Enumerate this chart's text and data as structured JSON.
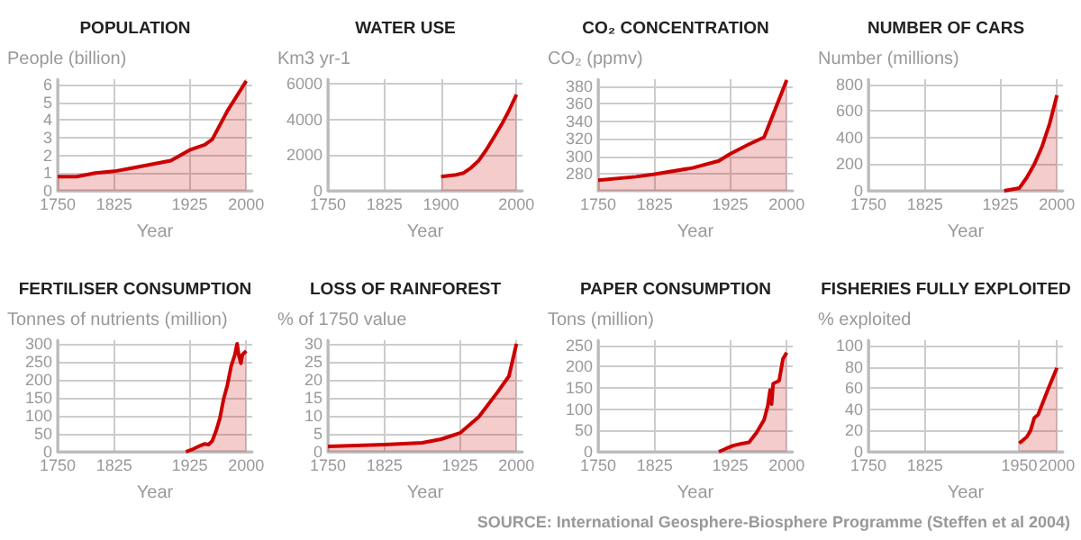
{
  "chart_data": [
    {
      "type": "area",
      "title": "POPULATION",
      "ylabel": "People (billion)",
      "xlabel": "Year",
      "color": "#cc0000",
      "grid": true,
      "marker": "none",
      "line_style": "solid",
      "x": [
        1750,
        1775,
        1800,
        1825,
        1850,
        1875,
        1900,
        1925,
        1945,
        1955,
        1975,
        2000
      ],
      "values": [
        0.8,
        0.8,
        1.0,
        1.1,
        1.3,
        1.5,
        1.7,
        2.3,
        2.6,
        2.9,
        4.5,
        6.2
      ],
      "xlim": [
        1750,
        2008
      ],
      "xticks": [
        1750,
        1825,
        1925,
        2000
      ],
      "ylim": [
        0,
        6.3
      ],
      "yticks": [
        0,
        1,
        2,
        3,
        4,
        5,
        6
      ]
    },
    {
      "type": "area",
      "title": "WATER USE",
      "ylabel": "Km3 yr-1",
      "xlabel": "Year",
      "color": "#cc0000",
      "grid": true,
      "marker": "none",
      "line_style": "solid",
      "x": [
        1900,
        1920,
        1930,
        1940,
        1950,
        1960,
        1970,
        1980,
        1990,
        2000
      ],
      "values": [
        800,
        900,
        1000,
        1300,
        1700,
        2300,
        3000,
        3700,
        4500,
        5400
      ],
      "xlim": [
        1750,
        2008
      ],
      "xticks": [
        1750,
        1825,
        1900,
        2000
      ],
      "ylim": [
        0,
        6270
      ],
      "yticks": [
        0,
        2000,
        4000,
        6000
      ]
    },
    {
      "type": "area",
      "title": "CO₂ CONCENTRATION",
      "ylabel": "CO₂ (ppmv)",
      "xlabel": "Year",
      "color": "#cc0000",
      "grid": true,
      "marker": "none",
      "line_style": "solid",
      "x": [
        1750,
        1800,
        1825,
        1875,
        1910,
        1925,
        1950,
        1970,
        2000
      ],
      "values": [
        273,
        277,
        280,
        287,
        295,
        303,
        314,
        322,
        387
      ],
      "xlim": [
        1750,
        2008
      ],
      "xticks": [
        1750,
        1825,
        1925,
        2000
      ],
      "ylim": [
        261,
        388
      ],
      "yticks": [
        280,
        300,
        320,
        340,
        360,
        380
      ]
    },
    {
      "type": "area",
      "title": "NUMBER OF CARS",
      "ylabel": "Number (millions)",
      "xlabel": "Year",
      "color": "#cc0000",
      "grid": true,
      "marker": "none",
      "line_style": "solid",
      "x": [
        1930,
        1950,
        1960,
        1970,
        1980,
        1990,
        2000
      ],
      "values": [
        0,
        20,
        100,
        200,
        330,
        500,
        720
      ],
      "xlim": [
        1750,
        2008
      ],
      "xticks": [
        1750,
        1825,
        1925,
        2000
      ],
      "ylim": [
        0,
        840
      ],
      "yticks": [
        0,
        200,
        400,
        600,
        800
      ]
    },
    {
      "type": "area",
      "title": "FERTILISER CONSUMPTION",
      "ylabel": "Tonnes of nutrients (million)",
      "xlabel": "Year",
      "color": "#cc0000",
      "grid": true,
      "marker": "none",
      "line_style": "solid",
      "x": [
        1920,
        1930,
        1940,
        1945,
        1950,
        1955,
        1960,
        1965,
        1970,
        1975,
        1980,
        1985,
        1988,
        1990,
        1993,
        1995,
        2000
      ],
      "values": [
        0,
        8,
        18,
        22,
        20,
        30,
        58,
        92,
        146,
        185,
        238,
        270,
        300,
        270,
        246,
        270,
        280
      ],
      "xlim": [
        1750,
        2008
      ],
      "xticks": [
        1750,
        1825,
        1925,
        2000
      ],
      "ylim": [
        0,
        310
      ],
      "yticks": [
        0,
        50,
        100,
        150,
        200,
        250,
        300
      ]
    },
    {
      "type": "area",
      "title": "LOSS OF RAINFOREST",
      "ylabel": "% of 1750 value",
      "xlabel": "Year",
      "color": "#cc0000",
      "grid": true,
      "marker": "none",
      "line_style": "solid",
      "x": [
        1750,
        1825,
        1875,
        1900,
        1925,
        1950,
        1975,
        1990,
        2000
      ],
      "values": [
        1.5,
        2,
        2.5,
        3.5,
        5.2,
        9.7,
        16.6,
        21,
        30
      ],
      "xlim": [
        1750,
        2008
      ],
      "xticks": [
        1750,
        1825,
        1925,
        2000
      ],
      "ylim": [
        0,
        31
      ],
      "yticks": [
        0,
        5,
        10,
        15,
        20,
        25,
        30
      ]
    },
    {
      "type": "area",
      "title": "PAPER CONSUMPTION",
      "ylabel": "Tons (million)",
      "xlabel": "Year",
      "color": "#cc0000",
      "grid": true,
      "marker": "none",
      "line_style": "solid",
      "x": [
        1910,
        1920,
        1930,
        1940,
        1950,
        1960,
        1970,
        1975,
        1978,
        1980,
        1982,
        1990,
        1995,
        2000
      ],
      "values": [
        0,
        8,
        15,
        19,
        22,
        45,
        75,
        109,
        145,
        112,
        160,
        167,
        218,
        233
      ],
      "xlim": [
        1750,
        2008
      ],
      "xticks": [
        1750,
        1825,
        1925,
        2000
      ],
      "ylim": [
        0,
        262
      ],
      "yticks": [
        0,
        50,
        100,
        150,
        200,
        250
      ]
    },
    {
      "type": "area",
      "title": "FISHERIES FULLY EXPLOITED",
      "ylabel": "% exploited",
      "xlabel": "Year",
      "color": "#cc0000",
      "grid": true,
      "marker": "none",
      "line_style": "solid",
      "x": [
        1950,
        1960,
        1965,
        1970,
        1975,
        1980,
        1990,
        2000
      ],
      "values": [
        8,
        14,
        20,
        32,
        35,
        44,
        62,
        79
      ],
      "xlim": [
        1750,
        2008
      ],
      "xticks": [
        1750,
        1825,
        1950,
        2000
      ],
      "ylim": [
        0,
        105
      ],
      "yticks": [
        0,
        20,
        40,
        60,
        80,
        100
      ],
      "annotations": [
        "SOURCE:  International Geosphere-Biosphere Programme (Steffen et al 2004)"
      ]
    }
  ]
}
